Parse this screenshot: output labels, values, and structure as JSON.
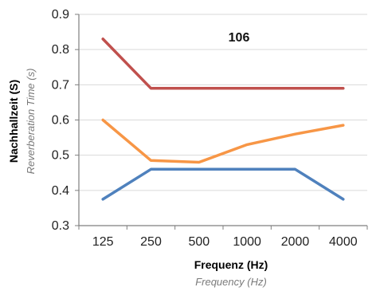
{
  "chart_data": {
    "type": "line",
    "categories": [
      "125",
      "250",
      "500",
      "1000",
      "2000",
      "4000"
    ],
    "series": [
      {
        "color": "#c0504d",
        "values": [
          0.83,
          0.69,
          0.69,
          0.69,
          0.69,
          0.69
        ]
      },
      {
        "color": "#f79646",
        "values": [
          0.6,
          0.485,
          0.48,
          0.53,
          0.56,
          0.585
        ]
      },
      {
        "color": "#4f81bd",
        "values": [
          0.375,
          0.46,
          0.46,
          0.46,
          0.46,
          0.375
        ]
      }
    ],
    "ylim": [
      0.3,
      0.9
    ],
    "yticks": [
      "0.3",
      "0.4",
      "0.5",
      "0.6",
      "0.7",
      "0.8",
      "0.9"
    ],
    "ytick_values": [
      0.3,
      0.4,
      0.5,
      0.6,
      0.7,
      0.8,
      0.9
    ],
    "annotation": "106",
    "xlabel": "Frequenz (Hz)",
    "xlabel_secondary": "Frequency (Hz)",
    "ylabel": "Nachhallzeit (S)",
    "ylabel_secondary": "Reverberation Time (s)",
    "grid": true,
    "legend": "none",
    "colors": {
      "axis": "#7f7f7f",
      "grid": "#d9d9d9"
    }
  }
}
